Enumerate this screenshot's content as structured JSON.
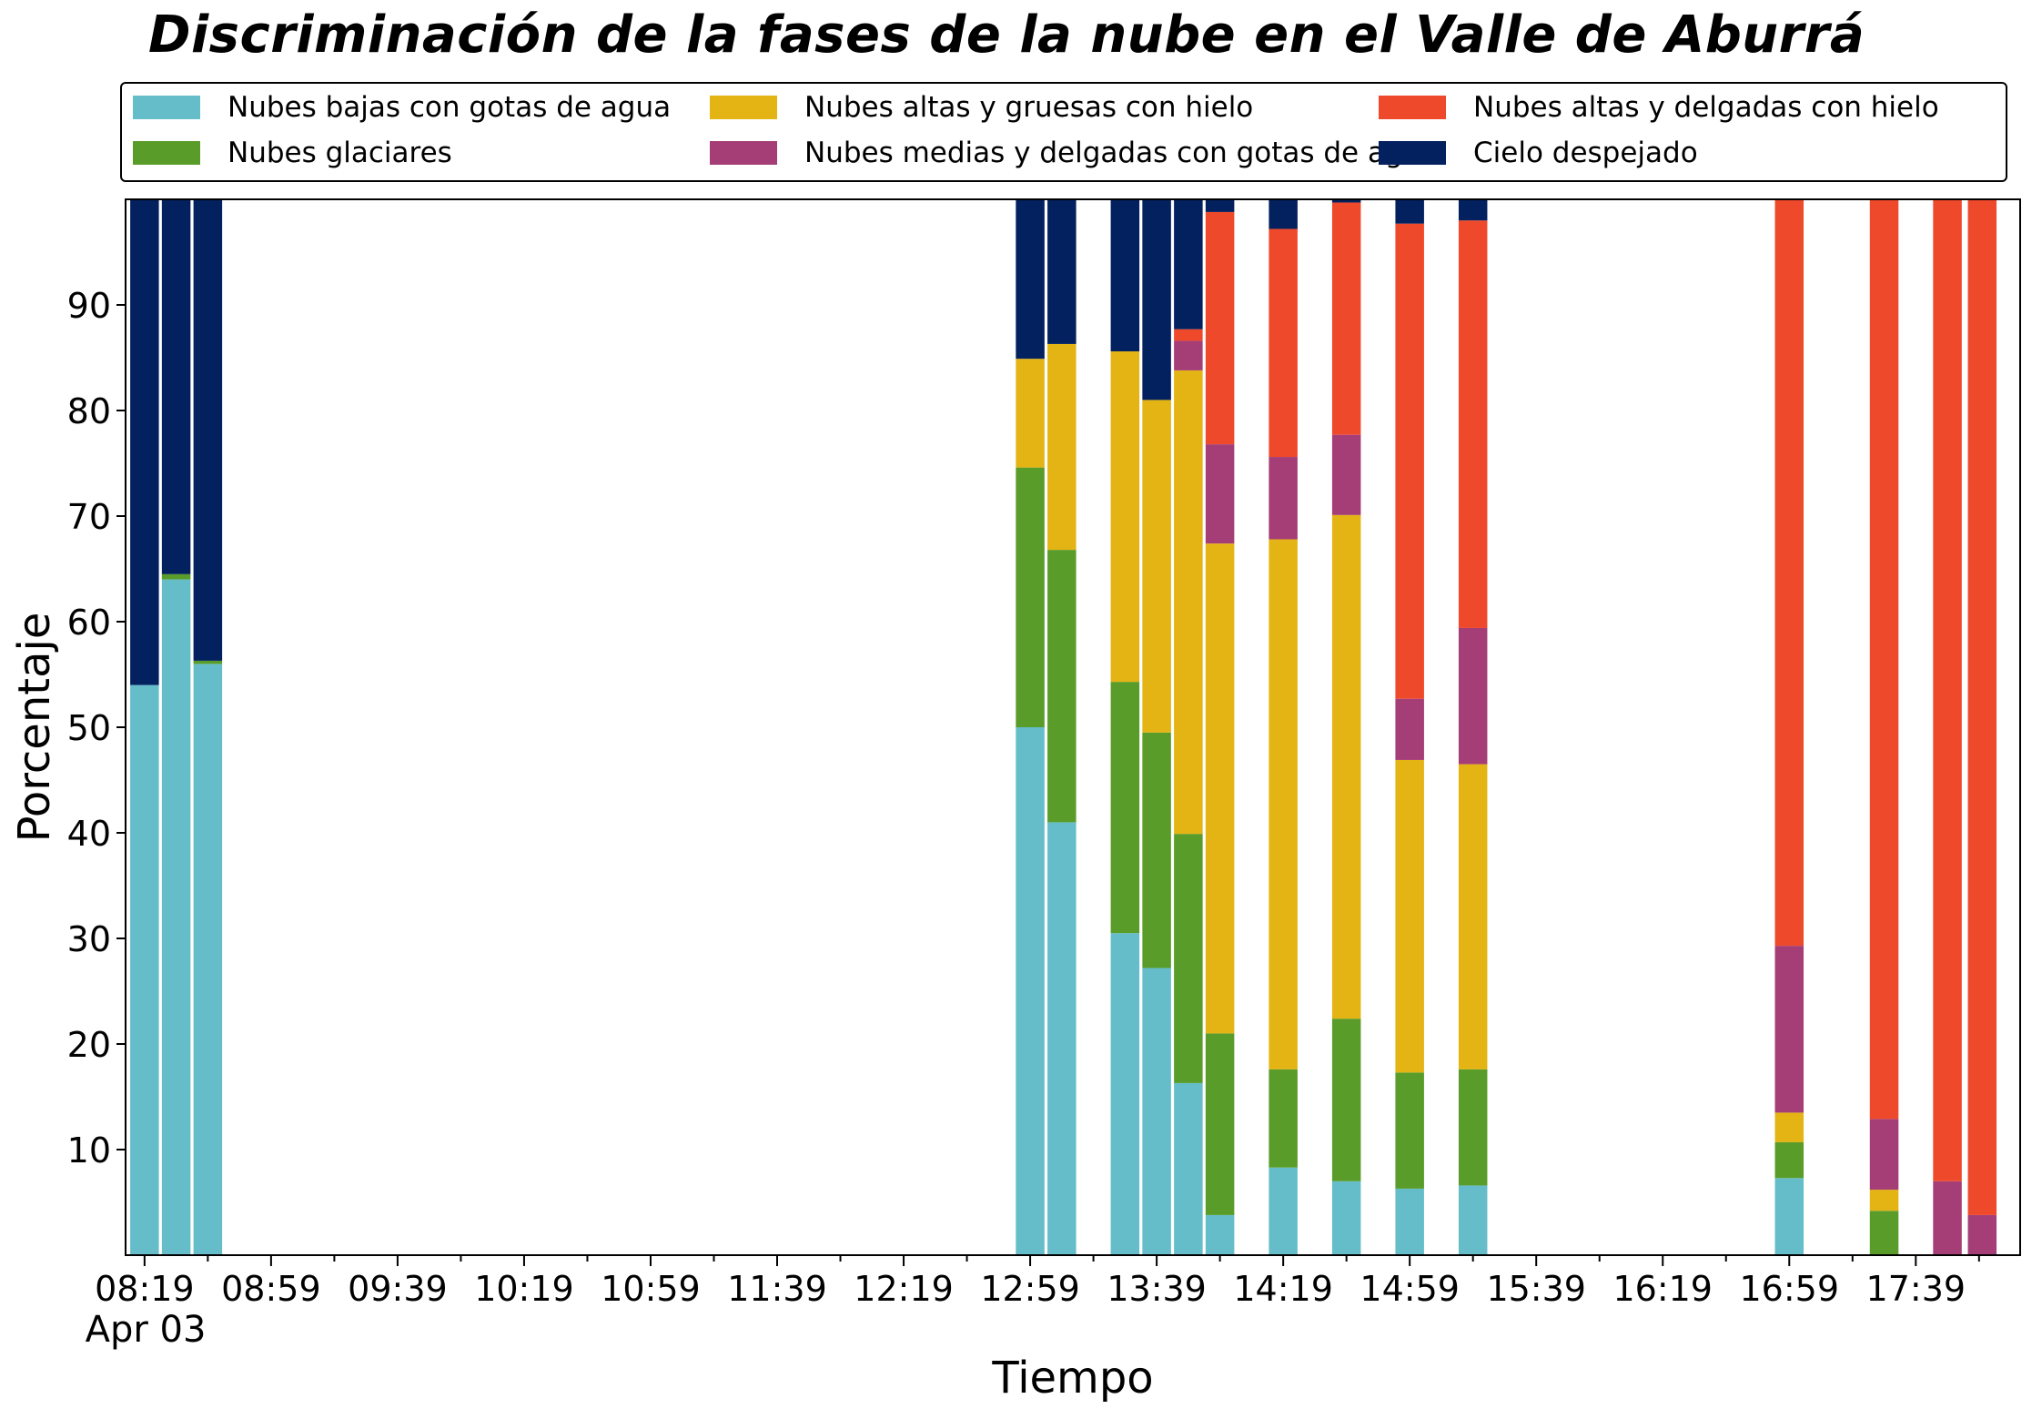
{
  "chart_data": {
    "type": "bar",
    "stacked": true,
    "title": "Discriminación de la fases de la nube en el Valle de Aburrá",
    "xlabel": "Tiempo",
    "ylabel": "Porcentaje",
    "ylim": [
      0,
      100
    ],
    "yticks": [
      10,
      20,
      30,
      40,
      50,
      60,
      70,
      80,
      90
    ],
    "xlim": [
      "08:13",
      "18:12"
    ],
    "xtick_labels": [
      "08:19",
      "08:59",
      "09:39",
      "10:19",
      "10:59",
      "11:39",
      "12:19",
      "12:59",
      "13:39",
      "14:19",
      "14:59",
      "15:39",
      "16:19",
      "16:59",
      "17:39"
    ],
    "x_date_label": "Apr 03",
    "grid": false,
    "legend_position": "top",
    "categories": [
      "08:19",
      "08:29",
      "08:39",
      "12:59",
      "13:09",
      "13:29",
      "13:39",
      "13:49",
      "13:59",
      "14:19",
      "14:39",
      "14:59",
      "15:19",
      "15:39",
      "16:59",
      "17:29",
      "17:49",
      "18:00"
    ],
    "series": [
      {
        "name": "Nubes bajas con gotas de agua",
        "color": "#66bdca",
        "values": [
          54.0,
          64.0,
          56.0,
          50.0,
          41.0,
          30.5,
          27.2,
          16.3,
          3.8,
          8.3,
          7.0,
          6.3,
          6.6,
          0,
          7.3,
          0,
          0,
          0
        ]
      },
      {
        "name": "Nubes glaciares",
        "color": "#5a9c29",
        "values": [
          0,
          0.5,
          0.3,
          24.6,
          25.8,
          23.8,
          22.3,
          23.6,
          17.2,
          9.3,
          15.4,
          11.0,
          11.0,
          0,
          3.4,
          4.2,
          0,
          0
        ]
      },
      {
        "name": "Nubes altas y gruesas con hielo",
        "color": "#e3b413",
        "values": [
          0,
          0,
          0,
          10.3,
          19.5,
          31.3,
          31.5,
          43.9,
          46.4,
          50.2,
          47.7,
          29.6,
          28.9,
          0,
          2.8,
          2.0,
          0,
          0
        ]
      },
      {
        "name": "Nubes medias y delgadas con gotas de agua",
        "color": "#a53e77",
        "values": [
          0,
          0,
          0,
          0,
          0,
          0,
          0,
          2.8,
          9.4,
          7.8,
          7.6,
          5.8,
          12.9,
          0,
          15.8,
          6.7,
          7.0,
          3.8
        ]
      },
      {
        "name": "Nubes altas y delgadas con hielo",
        "color": "#ee492b",
        "values": [
          0,
          0,
          0,
          0,
          0,
          0,
          0,
          1.1,
          22.0,
          21.6,
          22.0,
          45.0,
          38.6,
          0,
          70.7,
          87.1,
          93.0,
          96.2
        ]
      },
      {
        "name": "Cielo despejado",
        "color": "#03215f",
        "values": [
          46.0,
          35.5,
          43.7,
          15.1,
          13.7,
          14.4,
          19.0,
          12.3,
          1.2,
          2.8,
          0.3,
          2.3,
          2.0,
          0,
          0,
          0,
          0,
          0
        ]
      }
    ]
  }
}
